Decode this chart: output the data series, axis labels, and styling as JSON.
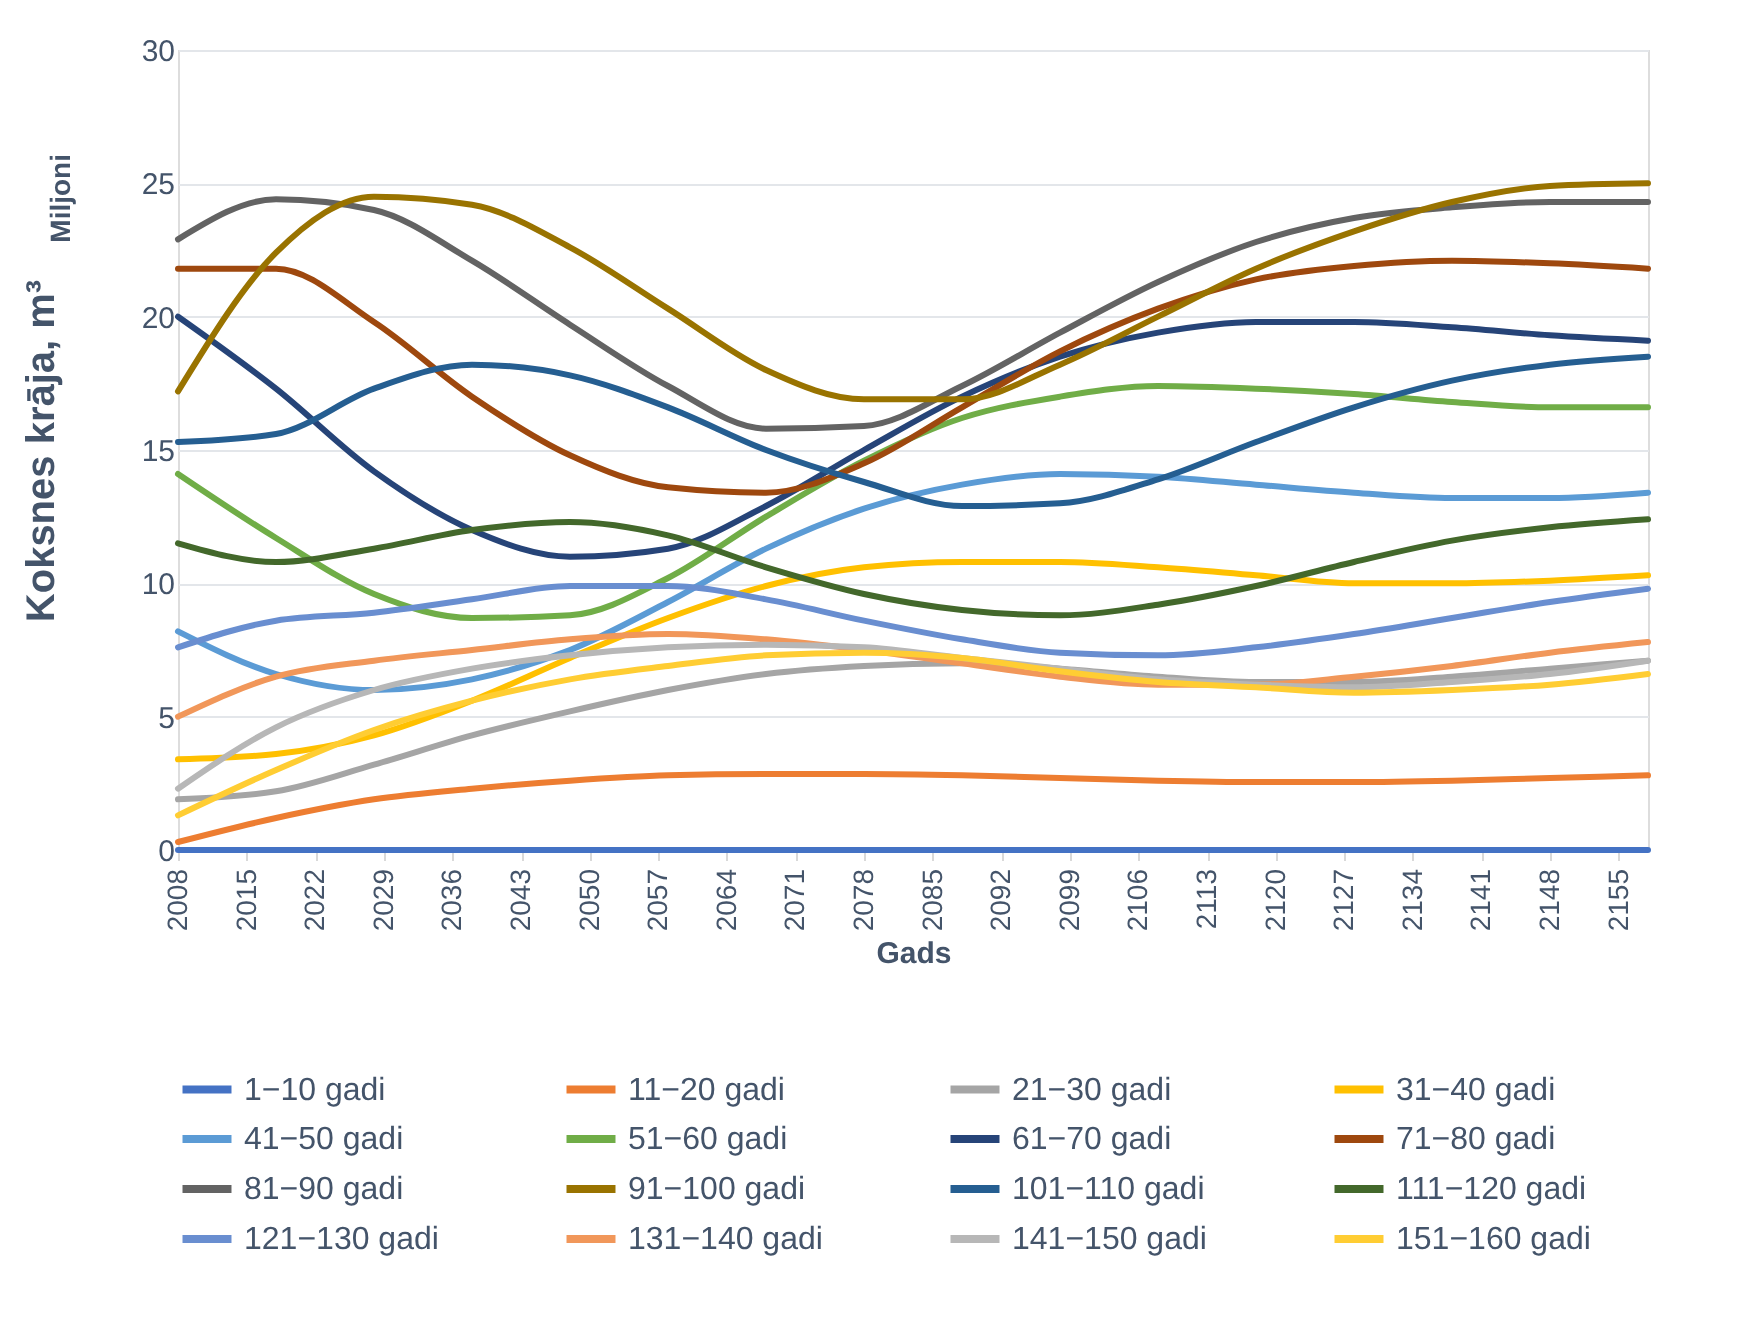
{
  "chart_data": {
    "type": "line",
    "xlabel": "Gads",
    "ylabel": "Koksnes krāja, m³",
    "annotations": [
      "Miljoni"
    ],
    "x": [
      2008,
      2018,
      2028,
      2038,
      2048,
      2058,
      2068,
      2078,
      2088,
      2098,
      2108,
      2118,
      2128,
      2138,
      2148,
      2158
    ],
    "xlim": [
      2008,
      2158
    ],
    "xticks": [
      2008,
      2015,
      2022,
      2029,
      2036,
      2043,
      2050,
      2057,
      2064,
      2071,
      2078,
      2085,
      2092,
      2099,
      2106,
      2113,
      2120,
      2127,
      2134,
      2141,
      2148,
      2155
    ],
    "ylim": [
      0,
      30
    ],
    "yticks": [
      0,
      5,
      10,
      15,
      20,
      25,
      30
    ],
    "grid": "y",
    "legend": "bottom",
    "line_style": "solid",
    "marker": "none",
    "series": [
      {
        "name": "1−10 gadi",
        "color": "#4472c4",
        "values": [
          0,
          0,
          0,
          0,
          0,
          0,
          0,
          0,
          0,
          0,
          0,
          0,
          0,
          0,
          0,
          0
        ]
      },
      {
        "name": "11−20 gadi",
        "color": "#ed7d31",
        "values": [
          0.3,
          1.2,
          1.9,
          2.3,
          2.6,
          2.8,
          2.85,
          2.85,
          2.8,
          2.7,
          2.6,
          2.55,
          2.55,
          2.6,
          2.7,
          2.8
        ]
      },
      {
        "name": "21−30 gadi",
        "color": "#a5a5a5",
        "values": [
          1.9,
          2.2,
          3.2,
          4.3,
          5.2,
          6.0,
          6.6,
          6.9,
          7.0,
          6.8,
          6.5,
          6.3,
          6.3,
          6.5,
          6.8,
          7.1
        ]
      },
      {
        "name": "31−40 gadi",
        "color": "#ffc000",
        "values": [
          3.4,
          3.6,
          4.3,
          5.6,
          7.2,
          8.7,
          9.9,
          10.6,
          10.8,
          10.8,
          10.6,
          10.3,
          10.0,
          10.0,
          10.1,
          10.3
        ]
      },
      {
        "name": "41−50 gadi",
        "color": "#5b9bd5",
        "values": [
          8.2,
          6.6,
          6.0,
          6.4,
          7.5,
          9.3,
          11.3,
          12.8,
          13.7,
          14.1,
          14.0,
          13.7,
          13.4,
          13.2,
          13.2,
          13.4
        ]
      },
      {
        "name": "51−60 gadi",
        "color": "#70ad47",
        "values": [
          14.1,
          11.7,
          9.6,
          8.7,
          8.8,
          10.2,
          12.5,
          14.6,
          16.2,
          17.0,
          17.4,
          17.3,
          17.1,
          16.8,
          16.6,
          16.6
        ]
      },
      {
        "name": "61−70 gadi",
        "color": "#264478",
        "values": [
          20.0,
          17.3,
          14.2,
          12.0,
          11.0,
          11.3,
          12.9,
          15.0,
          17.0,
          18.5,
          19.4,
          19.8,
          19.8,
          19.6,
          19.3,
          19.1
        ]
      },
      {
        "name": "71−80 gadi",
        "color": "#9e480e",
        "values": [
          21.8,
          21.8,
          19.8,
          17.0,
          14.8,
          13.6,
          13.4,
          14.5,
          16.6,
          18.7,
          20.3,
          21.4,
          21.9,
          22.1,
          22.0,
          21.8
        ]
      },
      {
        "name": "81−90 gadi",
        "color": "#636363",
        "values": [
          22.9,
          24.4,
          24.0,
          22.1,
          19.7,
          17.4,
          15.8,
          15.9,
          17.4,
          19.4,
          21.3,
          22.8,
          23.7,
          24.1,
          24.3,
          24.3
        ]
      },
      {
        "name": "91−100 gadi",
        "color": "#997300",
        "values": [
          17.2,
          22.4,
          24.5,
          24.2,
          22.6,
          20.3,
          18.0,
          16.9,
          16.9,
          18.2,
          20.0,
          21.8,
          23.2,
          24.3,
          24.9,
          25.0
        ]
      },
      {
        "name": "101−110 gadi",
        "color": "#255e91",
        "values": [
          15.3,
          15.6,
          17.3,
          18.2,
          17.8,
          16.6,
          15.0,
          13.8,
          12.9,
          13.0,
          13.9,
          15.3,
          16.6,
          17.6,
          18.2,
          18.5
        ]
      },
      {
        "name": "111−120 gadi",
        "color": "#43682b",
        "values": [
          11.5,
          10.8,
          11.3,
          12.0,
          12.3,
          11.8,
          10.6,
          9.6,
          9.0,
          8.8,
          9.2,
          9.9,
          10.8,
          11.6,
          12.1,
          12.4
        ]
      },
      {
        "name": "121−130 gadi",
        "color": "#698ed0",
        "values": [
          7.6,
          8.6,
          8.9,
          9.4,
          9.9,
          9.9,
          9.4,
          8.6,
          7.9,
          7.4,
          7.3,
          7.6,
          8.1,
          8.7,
          9.3,
          9.8
        ]
      },
      {
        "name": "131−140 gadi",
        "color": "#f1975a",
        "values": [
          5.0,
          6.5,
          7.1,
          7.5,
          7.9,
          8.1,
          7.9,
          7.5,
          7.0,
          6.5,
          6.2,
          6.2,
          6.5,
          6.9,
          7.4,
          7.8
        ]
      },
      {
        "name": "141−150 gadi",
        "color": "#b7b7b7",
        "values": [
          2.3,
          4.6,
          6.0,
          6.8,
          7.3,
          7.6,
          7.7,
          7.6,
          7.2,
          6.8,
          6.4,
          6.2,
          6.1,
          6.3,
          6.6,
          7.1
        ]
      },
      {
        "name": "151−160 gadi",
        "color": "#ffcd33",
        "values": [
          1.3,
          3.0,
          4.5,
          5.6,
          6.4,
          6.9,
          7.3,
          7.4,
          7.2,
          6.7,
          6.3,
          6.1,
          5.9,
          6.0,
          6.2,
          6.6
        ]
      }
    ]
  }
}
